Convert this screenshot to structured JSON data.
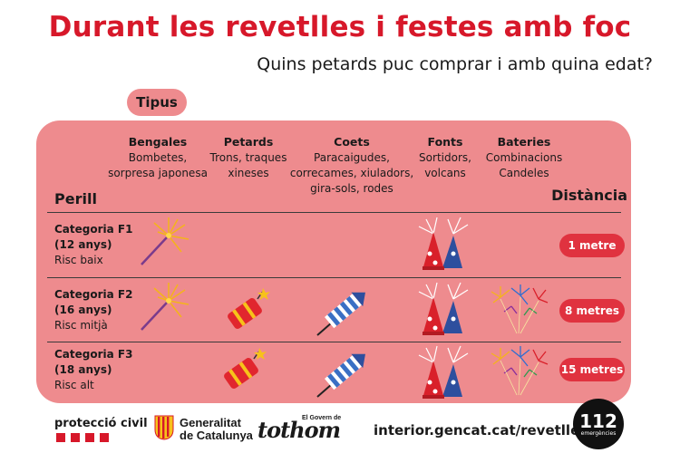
{
  "header": {
    "title": "Durant les revetlles i festes amb foc",
    "subtitle": "Quins petards puc comprar i amb quina edat?"
  },
  "tipus_label": "Tipus",
  "columns": [
    {
      "heading": "Bengales",
      "lines": [
        "Bombetes,",
        "sorpresa japonesa"
      ]
    },
    {
      "heading": "Petards",
      "lines": [
        "Trons, traques",
        "xineses"
      ]
    },
    {
      "heading": "Coets",
      "lines": [
        "Paracaigudes,",
        "correcames, xiuladors,",
        "gira-sols, rodes"
      ]
    },
    {
      "heading": "Fonts",
      "lines": [
        "Sortidors,",
        "volcans"
      ]
    },
    {
      "heading": "Bateries",
      "lines": [
        "Combinacions",
        "Candeles"
      ]
    }
  ],
  "perill_label": "Perill",
  "distancia_label": "Distància",
  "rows": [
    {
      "name": "Categoria F1",
      "age": "(12 anys)",
      "risk": "Risc baix",
      "distance": "1 metre"
    },
    {
      "name": "Categoria F2",
      "age": "(16 anys)",
      "risk": "Risc mitjà",
      "distance": "8 metres"
    },
    {
      "name": "Categoria F3",
      "age": "(18 anys)",
      "risk": "Risc alt",
      "distance": "15 metres"
    }
  ],
  "icons": [
    "sparkler-icon",
    "firecracker-icon",
    "rocket-icon",
    "fountain-icon",
    "battery-fireworks-icon"
  ],
  "footer": {
    "proteccio": "protecció civil",
    "generalitat_line1": "Generalitat",
    "generalitat_line2": "de Catalunya",
    "govern_small": "El Govern de",
    "tothom": "tothom",
    "url": "interior.gencat.cat/revetlles",
    "emergency_number": "112",
    "emergency_label": "emergències"
  },
  "colors": {
    "title": "#d7182a",
    "panel": "#ee8b8e",
    "badge": "#e0323f"
  }
}
